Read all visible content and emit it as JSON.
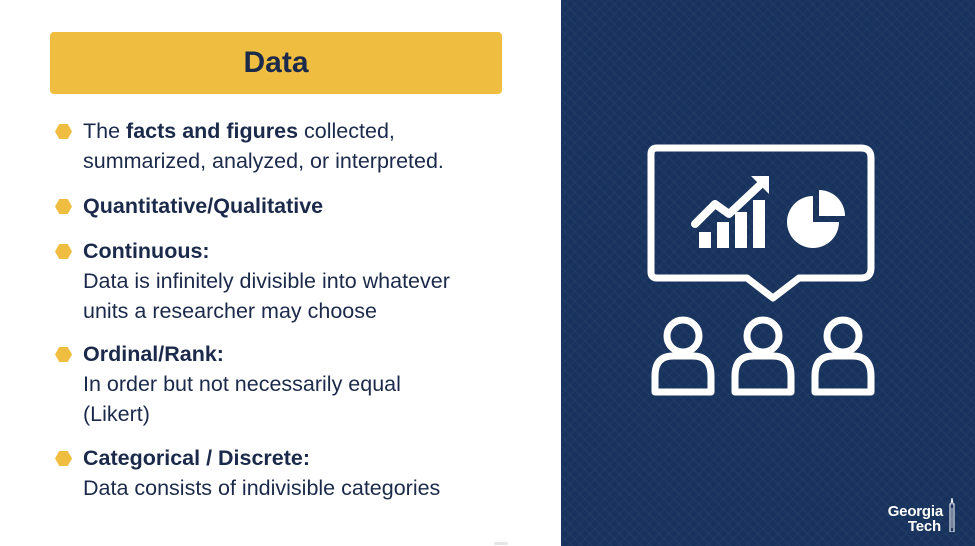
{
  "slide": {
    "title": "Data",
    "bullets": [
      {
        "prefix": "The ",
        "bold": "facts and figures",
        "suffix": " collected,",
        "line2": "summarized, analyzed, or interpreted."
      },
      {
        "heading": "Quantitative/Qualitative"
      },
      {
        "heading": "Continuous:",
        "lines": [
          "Data is infinitely divisible into whatever",
          "units a researcher may choose"
        ]
      },
      {
        "heading": "Ordinal/Rank:",
        "lines": [
          "In order but not necessarily equal",
          "(Likert)"
        ]
      },
      {
        "heading": "Categorical / Discrete:",
        "lines": [
          "Data consists of indivisible categories"
        ]
      }
    ]
  },
  "illustration": {
    "icon": "presentation-audience-chart-icon"
  },
  "logo": {
    "line1": "Georgia",
    "line2": "Tech"
  },
  "colors": {
    "accent": "#efbd3f",
    "navy": "#17325c",
    "text": "#1b2a4a"
  }
}
